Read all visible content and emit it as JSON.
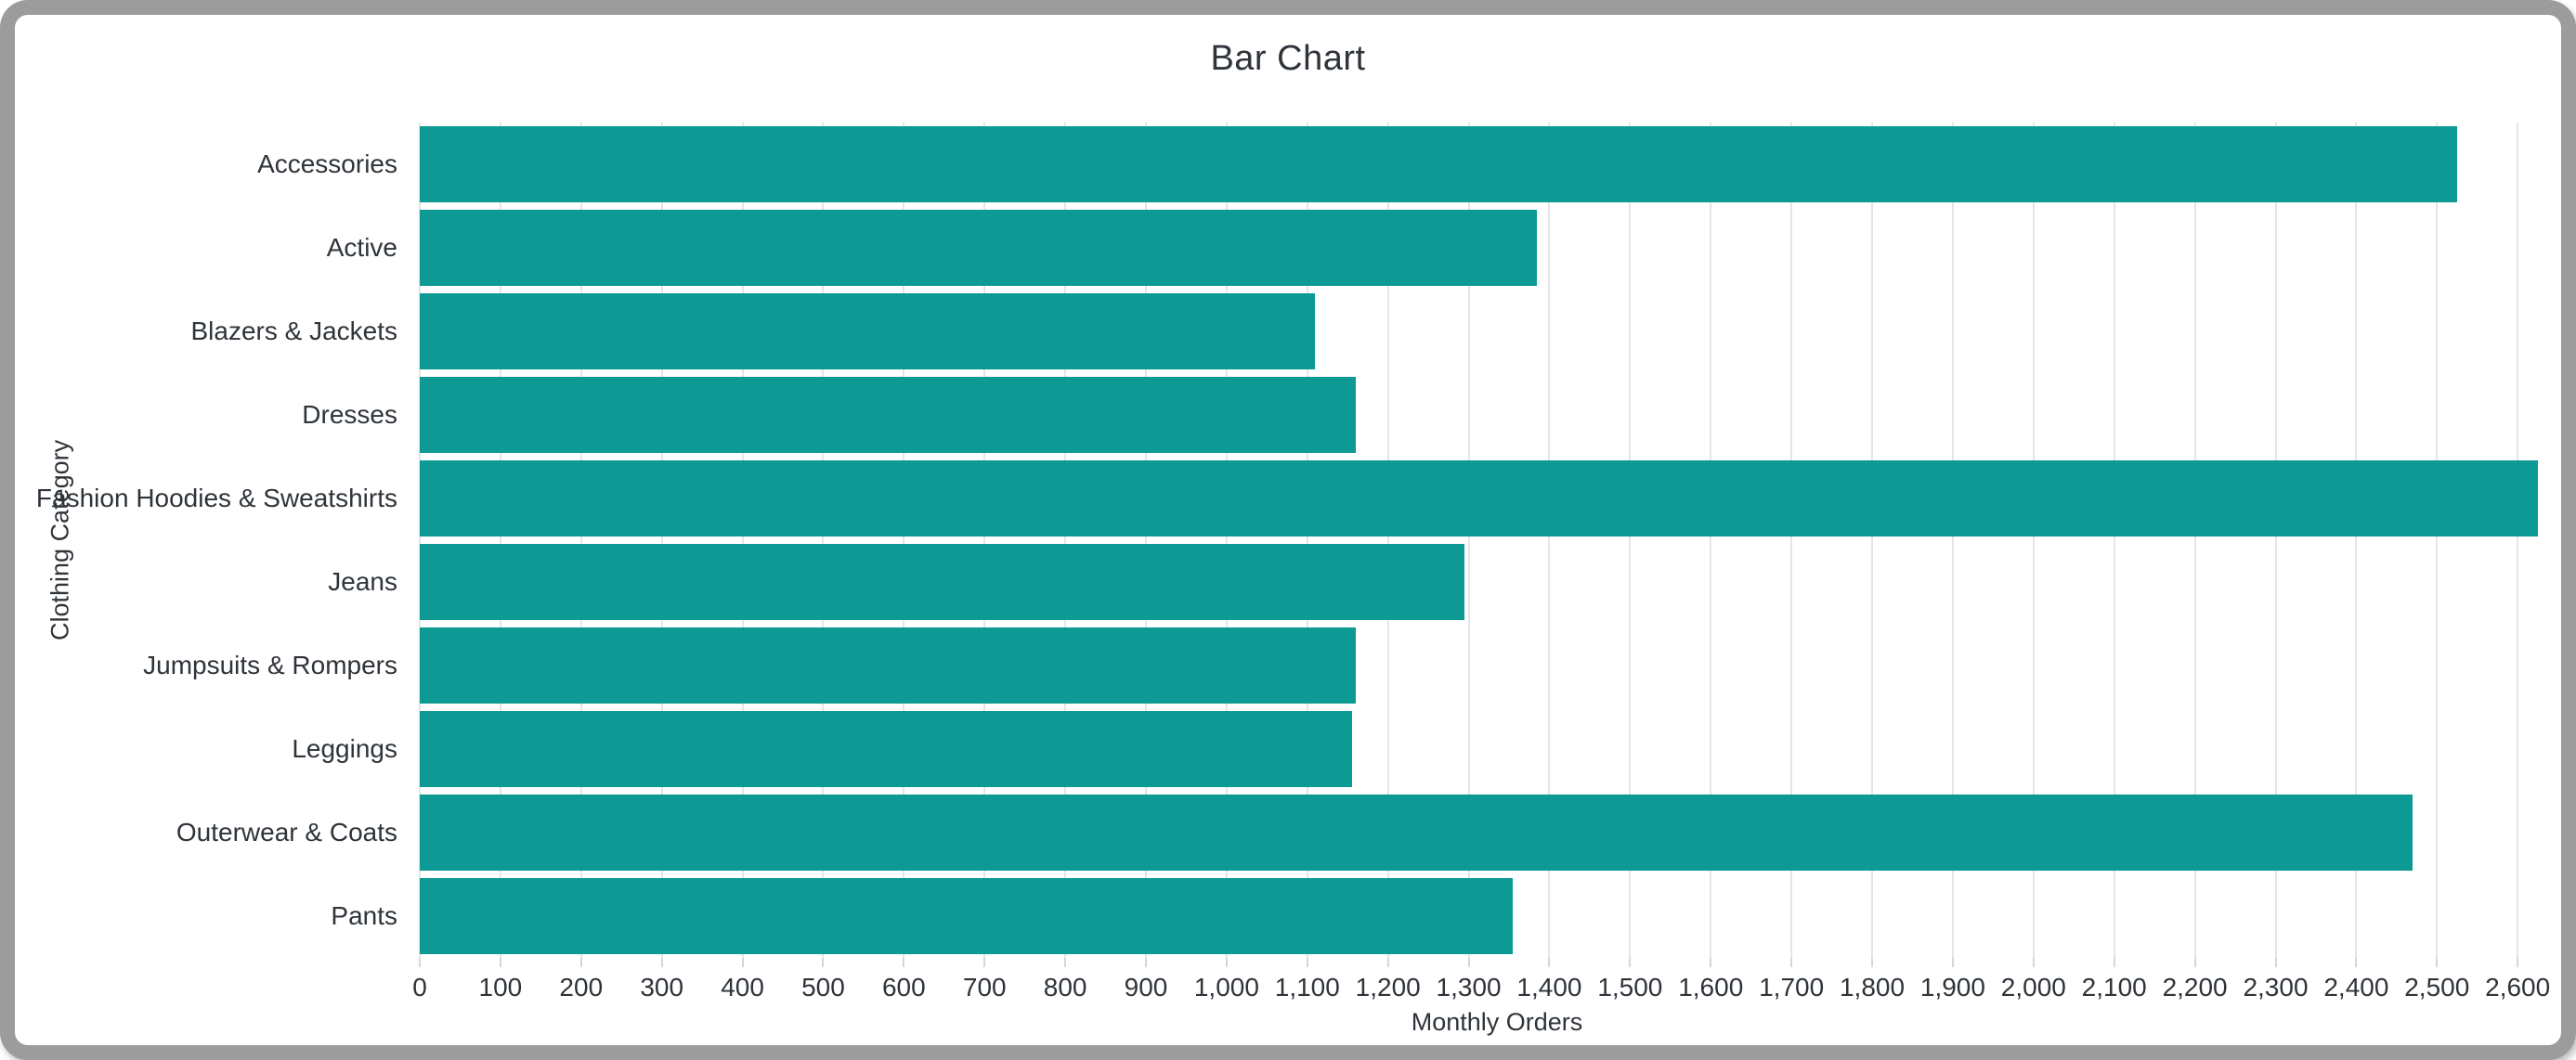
{
  "chart_data": {
    "type": "bar",
    "orientation": "horizontal",
    "title": "Bar Chart",
    "xlabel": "Monthly Orders",
    "ylabel": "Clothing Category",
    "categories": [
      "Accessories",
      "Active",
      "Blazers & Jackets",
      "Dresses",
      "Fashion Hoodies & Sweatshirts",
      "Jeans",
      "Jumpsuits & Rompers",
      "Leggings",
      "Outerwear & Coats",
      "Pants"
    ],
    "values": [
      2525,
      1385,
      1110,
      1160,
      2625,
      1295,
      1160,
      1155,
      2470,
      1355
    ],
    "xlim": [
      0,
      2670
    ],
    "xticks": [
      0,
      100,
      200,
      300,
      400,
      500,
      600,
      700,
      800,
      900,
      1000,
      1100,
      1200,
      1300,
      1400,
      1500,
      1600,
      1700,
      1800,
      1900,
      2000,
      2100,
      2200,
      2300,
      2400,
      2500,
      2600
    ],
    "grid": true,
    "legend_position": "none"
  },
  "colors": {
    "bar": "#0e9a94",
    "text": "#2e343a",
    "gridline": "#e3e6e8",
    "tick": "#d4d7da",
    "frame_border": "#9c9c9c",
    "background": "#ffffff"
  }
}
